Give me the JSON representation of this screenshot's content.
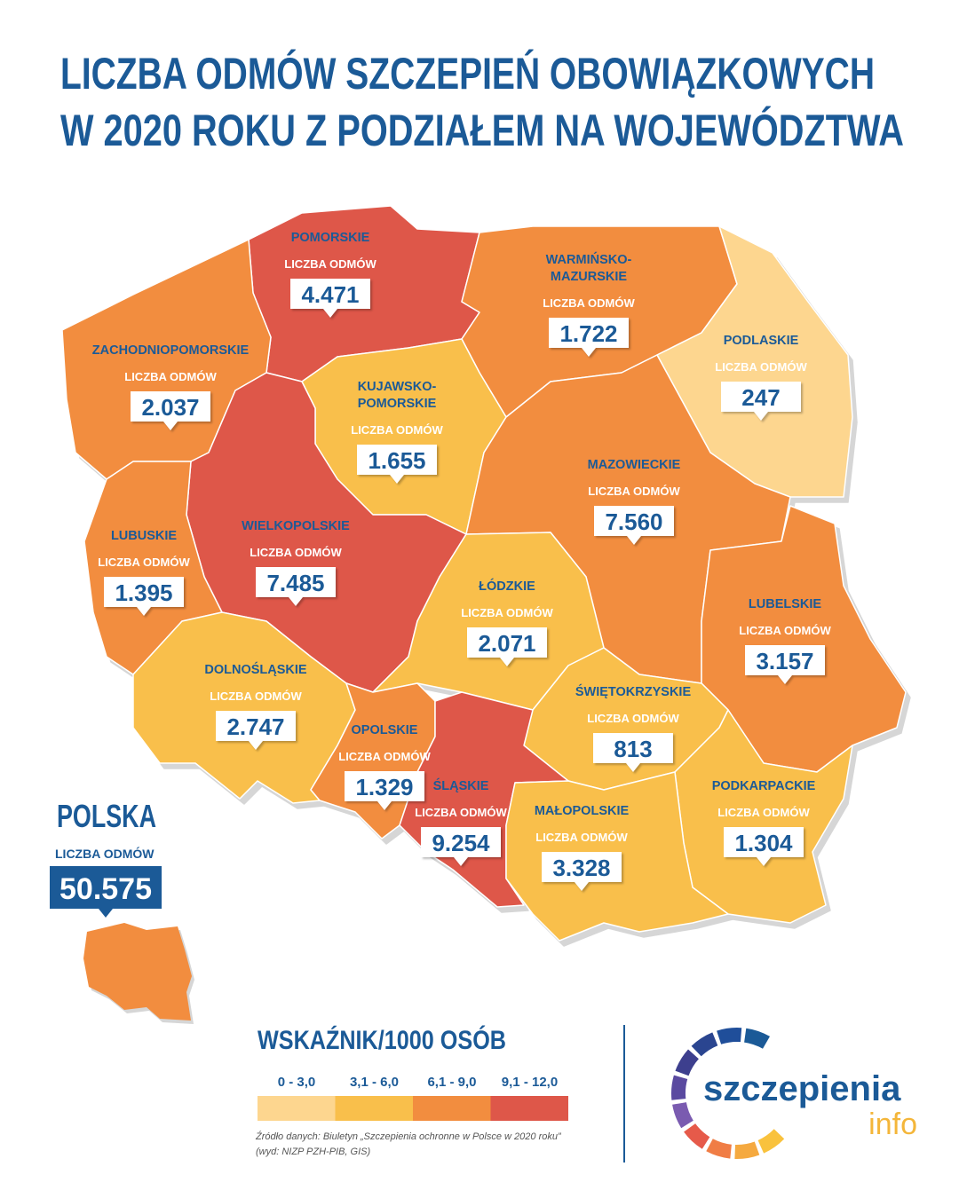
{
  "header": {
    "title_lines": [
      "LICZBA ODMÓW SZCZEPIEŃ OBOWIĄZKOWYCH",
      "W 2020 ROKU Z PODZIAŁEM NA WOJEWÓDZTWA"
    ],
    "color": "#1b5a97"
  },
  "regions": [
    {
      "name": [
        "POMORSKIE"
      ],
      "label": "LICZBA ODMÓW",
      "value": "4.471",
      "color": "#de5749"
    },
    {
      "name": [
        "WARMIŃSKO-",
        "MAZURSKIE"
      ],
      "label": "LICZBA ODMÓW",
      "value": "1.722",
      "color": "#f28d3f"
    },
    {
      "name": [
        "PODLASKIE"
      ],
      "label": "LICZBA ODMÓW",
      "value": "247",
      "color": "#fdd68f"
    },
    {
      "name": [
        "ZACHODNIOPOMORSKIE"
      ],
      "label": "LICZBA ODMÓW",
      "value": "2.037",
      "color": "#f28d3f"
    },
    {
      "name": [
        "KUJAWSKO-",
        "POMORSKIE"
      ],
      "label": "LICZBA ODMÓW",
      "value": "1.655",
      "color": "#f9bf4b"
    },
    {
      "name": [
        "MAZOWIECKIE"
      ],
      "label": "LICZBA ODMÓW",
      "value": "7.560",
      "color": "#f28d3f"
    },
    {
      "name": [
        "WIELKOPOLSKIE"
      ],
      "label": "LICZBA ODMÓW",
      "value": "7.485",
      "color": "#de5749"
    },
    {
      "name": [
        "LUBUSKIE"
      ],
      "label": "LICZBA ODMÓW",
      "value": "1.395",
      "color": "#f28d3f"
    },
    {
      "name": [
        "ŁÓDZKIE"
      ],
      "label": "LICZBA ODMÓW",
      "value": "2.071",
      "color": "#f9bf4b"
    },
    {
      "name": [
        "LUBELSKIE"
      ],
      "label": "LICZBA ODMÓW",
      "value": "3.157",
      "color": "#f28d3f"
    },
    {
      "name": [
        "DOLNOŚLĄSKIE"
      ],
      "label": "LICZBA ODMÓW",
      "value": "2.747",
      "color": "#f9bf4b"
    },
    {
      "name": [
        "ŚWIĘTOKRZYSKIE"
      ],
      "label": "LICZBA ODMÓW",
      "value": "813",
      "color": "#f9bf4b"
    },
    {
      "name": [
        "OPOLSKIE"
      ],
      "label": "LICZBA ODMÓW",
      "value": "1.329",
      "color": "#f28d3f"
    },
    {
      "name": [
        "PODKARPACKIE"
      ],
      "label": "LICZBA ODMÓW",
      "value": "1.304",
      "color": "#f9bf4b"
    },
    {
      "name": [
        "ŚLĄSKIE"
      ],
      "label": "LICZBA ODMÓW",
      "value": "9.254",
      "color": "#de5749"
    },
    {
      "name": [
        "MAŁOPOLSKIE"
      ],
      "label": "LICZBA ODMÓW",
      "value": "3.328",
      "color": "#f9bf4b"
    }
  ],
  "country": {
    "name": "POLSKA",
    "label": "LICZBA ODMÓW",
    "value": "50.575",
    "color": "#f28d3f"
  },
  "legend": {
    "title": "WSKAŹNIK/1000 OSÓB",
    "items": [
      {
        "label": "0 - 3,0",
        "color": "#fdd68f"
      },
      {
        "label": "3,1 - 6,0",
        "color": "#f9bf4b"
      },
      {
        "label": "6,1 - 9,0",
        "color": "#f28d3f"
      },
      {
        "label": "9,1 - 12,0",
        "color": "#de5749"
      }
    ]
  },
  "source_lines": [
    "Źródło danych: Biuletyn „Szczepienia ochronne w Polsce w 2020 roku”",
    "(wyd: NIZP PZH-PIB, GIS)"
  ],
  "logo": {
    "word1": "szczepienia",
    "word2": "info"
  }
}
